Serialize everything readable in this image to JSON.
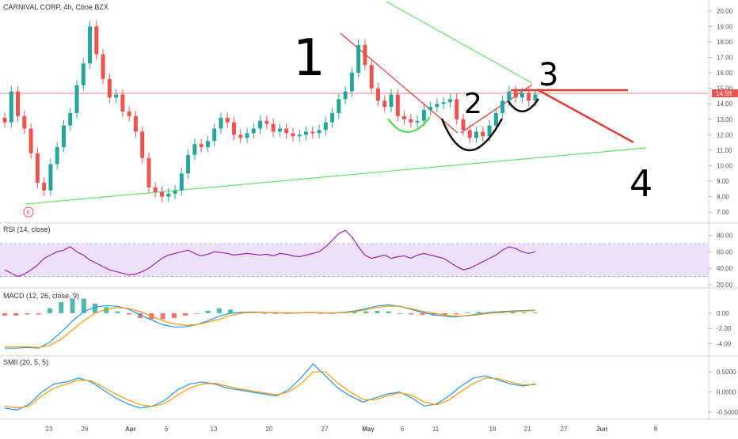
{
  "chart_data": [
    {
      "type": "candlestick",
      "title": "CARNIVAL CORP, 4h, Cboe BZX",
      "ylim": [
        6.5,
        20.5
      ],
      "y_ticks": [
        "7.00",
        "8.00",
        "9.00",
        "10.00",
        "11.00",
        "12.00",
        "13.00",
        "14.00",
        "15.00",
        "16.00",
        "17.00",
        "18.00",
        "19.00",
        "20.00"
      ],
      "last_price": "14.58",
      "up_color": "#26a69a",
      "down_color": "#ef5350",
      "events": [
        "E"
      ],
      "close_path": [
        12.8,
        14.8,
        13.2,
        12.4,
        10.8,
        8.9,
        8.4,
        10.1,
        11.2,
        12.6,
        13.4,
        15.2,
        16.6,
        19.0,
        17.2,
        15.6,
        14.4,
        14.6,
        13.5,
        13.2,
        12.2,
        10.5,
        8.6,
        8.3,
        8.0,
        8.2,
        8.4,
        9.5,
        10.7,
        11.4,
        11.2,
        11.6,
        12.4,
        13.1,
        12.8,
        12.0,
        11.8,
        12.1,
        12.4,
        12.9,
        12.7,
        12.2,
        12.4,
        12.1,
        11.9,
        12.0,
        12.2,
        12.1,
        12.3,
        12.8,
        13.4,
        14.3,
        14.8,
        16.0,
        17.8,
        16.5,
        15.0,
        14.2,
        13.8,
        14.6,
        13.2,
        13.0,
        12.8,
        12.9,
        13.6,
        13.8,
        14.0,
        14.1,
        14.3,
        13.0,
        12.3,
        11.8,
        12.2,
        11.9,
        12.6,
        13.4,
        14.2,
        14.8,
        14.4,
        14.7,
        14.2,
        14.6
      ],
      "annotations": [
        "1",
        "2",
        "3",
        "4"
      ]
    },
    {
      "type": "line",
      "title": "RSI (14, close)",
      "ylim": [
        20,
        90
      ],
      "y_ticks": [
        "20.00",
        "40.00",
        "60.00",
        "80.00"
      ],
      "band": [
        30,
        70
      ],
      "series": [
        {
          "color": "#9c27b0",
          "values": [
            38,
            34,
            30,
            33,
            38,
            44,
            52,
            56,
            60,
            62,
            66,
            60,
            56,
            50,
            46,
            42,
            38,
            36,
            34,
            32,
            33,
            36,
            40,
            46,
            52,
            56,
            58,
            60,
            62,
            58,
            55,
            57,
            60,
            59,
            58,
            56,
            57,
            58,
            57,
            56,
            57,
            55,
            58,
            57,
            55,
            54,
            56,
            58,
            60,
            66,
            74,
            82,
            86,
            78,
            66,
            56,
            52,
            54,
            56,
            52,
            54,
            55,
            52,
            56,
            58,
            56,
            54,
            52,
            47,
            42,
            38,
            40,
            44,
            48,
            52,
            56,
            62,
            66,
            64,
            60,
            58,
            60
          ]
        }
      ]
    },
    {
      "type": "line",
      "title": "MACD (12, 26, close, 9)",
      "ylim": [
        -5.2,
        2.8
      ],
      "y_ticks": [
        "-4.00",
        "-2.00",
        "0.00"
      ],
      "series": [
        {
          "color": "#2196f3",
          "values": [
            -4.6,
            -4.6,
            -4.5,
            -4.6,
            -3.8,
            -2.5,
            -1.0,
            0.2,
            0.8,
            1.0,
            0.9,
            0.5,
            -0.2,
            -0.9,
            -1.5,
            -1.8,
            -1.8,
            -1.5,
            -1.0,
            -0.4,
            0.0,
            0.1,
            0.15,
            0.1,
            0.05,
            0.0,
            0.05,
            0.1,
            0.05,
            0.0,
            0.1,
            0.3,
            0.6,
            0.95,
            1.1,
            0.9,
            0.5,
            0.1,
            -0.2,
            -0.4,
            -0.5,
            -0.3,
            -0.1,
            0.1,
            0.2,
            0.3,
            0.35,
            0.4
          ]
        },
        {
          "color": "#ff9800",
          "values": [
            -4.4,
            -4.4,
            -4.4,
            -4.5,
            -4.2,
            -3.4,
            -2.2,
            -1.0,
            0.0,
            0.5,
            0.75,
            0.6,
            0.2,
            -0.4,
            -1.0,
            -1.4,
            -1.6,
            -1.5,
            -1.2,
            -0.8,
            -0.3,
            0.0,
            0.1,
            0.1,
            0.08,
            0.04,
            0.03,
            0.06,
            0.06,
            0.03,
            0.05,
            0.2,
            0.45,
            0.75,
            0.95,
            0.9,
            0.6,
            0.25,
            0.0,
            -0.25,
            -0.4,
            -0.35,
            -0.2,
            0.0,
            0.1,
            0.2,
            0.28,
            0.35
          ]
        }
      ]
    },
    {
      "type": "line",
      "title": "SMII (20, 5, 5)",
      "ylim": [
        -0.6,
        0.8
      ],
      "y_ticks": [
        "-0.5000",
        "0.0000",
        "0.5000"
      ],
      "series": [
        {
          "color": "#2196f3",
          "values": [
            -0.4,
            -0.45,
            -0.3,
            0.0,
            0.2,
            0.25,
            0.35,
            0.25,
            0.05,
            -0.15,
            -0.3,
            -0.4,
            -0.35,
            -0.2,
            0.05,
            0.2,
            0.25,
            0.2,
            0.1,
            0.05,
            0.0,
            -0.05,
            -0.1,
            0.05,
            0.35,
            0.7,
            0.4,
            0.1,
            -0.1,
            -0.25,
            -0.15,
            -0.05,
            0.0,
            -0.15,
            -0.35,
            -0.3,
            -0.1,
            0.15,
            0.35,
            0.4,
            0.3,
            0.2,
            0.15,
            0.2
          ]
        },
        {
          "color": "#ff9800",
          "values": [
            -0.35,
            -0.4,
            -0.35,
            -0.1,
            0.1,
            0.2,
            0.3,
            0.28,
            0.12,
            -0.05,
            -0.2,
            -0.32,
            -0.36,
            -0.28,
            -0.08,
            0.1,
            0.2,
            0.22,
            0.15,
            0.08,
            0.03,
            -0.02,
            -0.07,
            0.0,
            0.2,
            0.5,
            0.5,
            0.22,
            0.0,
            -0.18,
            -0.2,
            -0.1,
            -0.02,
            -0.08,
            -0.25,
            -0.32,
            -0.2,
            0.02,
            0.22,
            0.35,
            0.33,
            0.25,
            0.18,
            0.18
          ]
        }
      ]
    }
  ],
  "x_ticks": [
    "23",
    "26",
    "Apr",
    "6",
    "13",
    "20",
    "27",
    "May",
    "6",
    "11",
    "18",
    "21",
    "27",
    "Jun",
    "8"
  ],
  "x_tick_bold": [
    false,
    false,
    true,
    false,
    false,
    false,
    false,
    true,
    false,
    false,
    false,
    false,
    false,
    true,
    false
  ]
}
